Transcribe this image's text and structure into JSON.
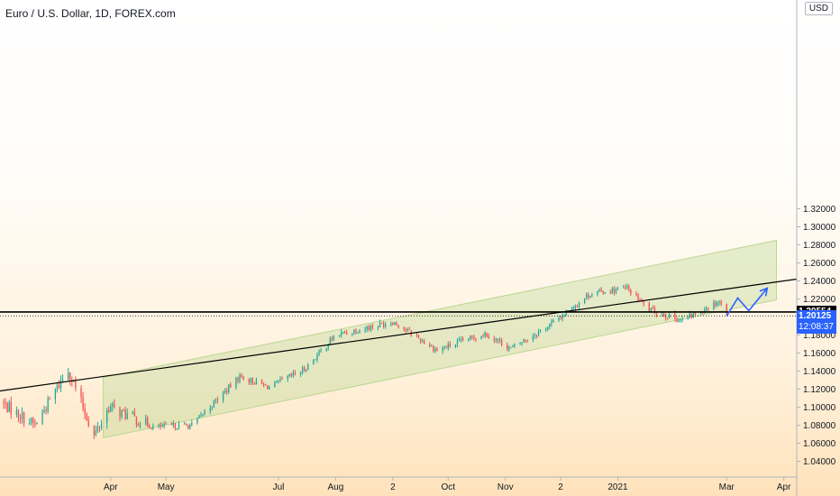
{
  "header": {
    "title": "Euro / U.S. Dollar, 1D, FOREX.com",
    "currency": "USD"
  },
  "price_tags": {
    "resistance": {
      "value": "1.20554",
      "color": "#000000"
    },
    "last": {
      "value": "1.20125",
      "countdown": "12:08:37",
      "color": "#2962ff"
    }
  },
  "colors": {
    "up": "#26a69a",
    "down": "#ef5350",
    "channel": "#bad792",
    "arrow": "#2962ff"
  },
  "chart_data": {
    "type": "candlestick",
    "title": "Euro / U.S. Dollar, 1D, FOREX.com",
    "xlabel": "",
    "ylabel": "",
    "ylim": [
      1.03,
      1.32
    ],
    "y_ticks": [
      1.04,
      1.06,
      1.08,
      1.1,
      1.12,
      1.14,
      1.16,
      1.18,
      1.2,
      1.22,
      1.24,
      1.26,
      1.28,
      1.3,
      1.32
    ],
    "y_tick_labels": [
      "1.04000",
      "1.06000",
      "1.08000",
      "1.10000",
      "1.12000",
      "1.14000",
      "1.16000",
      "1.18000",
      "1.20000",
      "1.22000",
      "1.24000",
      "1.26000",
      "1.28000",
      "1.30000",
      "1.32000"
    ],
    "x_range": [
      "2020-02-01",
      "2021-04-08"
    ],
    "x_ticks": [
      {
        "date": "2020-04-01",
        "label": "Apr"
      },
      {
        "date": "2020-05-01",
        "label": "May"
      },
      {
        "date": "2020-07-01",
        "label": "Jul"
      },
      {
        "date": "2020-08-01",
        "label": "Aug"
      },
      {
        "date": "2020-09-01",
        "label": "2"
      },
      {
        "date": "2020-10-01",
        "label": "Oct"
      },
      {
        "date": "2020-11-01",
        "label": "Nov"
      },
      {
        "date": "2020-12-01",
        "label": "2"
      },
      {
        "date": "2021-01-01",
        "label": "2021"
      },
      {
        "date": "2021-03-01",
        "label": "Mar"
      },
      {
        "date": "2021-04-01",
        "label": "Apr"
      }
    ],
    "price_path": [
      {
        "date": "2020-02-01",
        "close": 1.106
      },
      {
        "date": "2020-02-20",
        "close": 1.08
      },
      {
        "date": "2020-03-09",
        "close": 1.142
      },
      {
        "date": "2020-03-23",
        "close": 1.068
      },
      {
        "date": "2020-03-31",
        "close": 1.1
      },
      {
        "date": "2020-04-24",
        "close": 1.078
      },
      {
        "date": "2020-05-15",
        "close": 1.08
      },
      {
        "date": "2020-06-10",
        "close": 1.134
      },
      {
        "date": "2020-06-26",
        "close": 1.122
      },
      {
        "date": "2020-07-15",
        "close": 1.142
      },
      {
        "date": "2020-08-01",
        "close": 1.18
      },
      {
        "date": "2020-09-01",
        "close": 1.195
      },
      {
        "date": "2020-09-25",
        "close": 1.163
      },
      {
        "date": "2020-10-21",
        "close": 1.182
      },
      {
        "date": "2020-11-04",
        "close": 1.165
      },
      {
        "date": "2020-11-25",
        "close": 1.191
      },
      {
        "date": "2020-12-17",
        "close": 1.226
      },
      {
        "date": "2021-01-06",
        "close": 1.232
      },
      {
        "date": "2021-01-18",
        "close": 1.208
      },
      {
        "date": "2021-02-05",
        "close": 1.196
      },
      {
        "date": "2021-02-25",
        "close": 1.218
      },
      {
        "date": "2021-03-01",
        "close": 1.2012
      }
    ],
    "channel": {
      "start": {
        "date": "2020-03-28",
        "lower": 1.066,
        "upper": 1.133
      },
      "end": {
        "date": "2021-03-28",
        "lower": 1.219,
        "upper": 1.285
      }
    },
    "trendline": {
      "start": {
        "date": "2020-02-01",
        "price": 1.118
      },
      "end": {
        "date": "2021-04-08",
        "price": 1.242
      }
    },
    "horizontal_lines": [
      {
        "price": 1.20554,
        "style": "solid"
      },
      {
        "price": 1.20125,
        "style": "dotted"
      }
    ],
    "projection": [
      {
        "date": "2021-03-01",
        "price": 1.201
      },
      {
        "date": "2021-03-07",
        "price": 1.221
      },
      {
        "date": "2021-03-13",
        "price": 1.207
      },
      {
        "date": "2021-03-23",
        "price": 1.232
      }
    ]
  }
}
